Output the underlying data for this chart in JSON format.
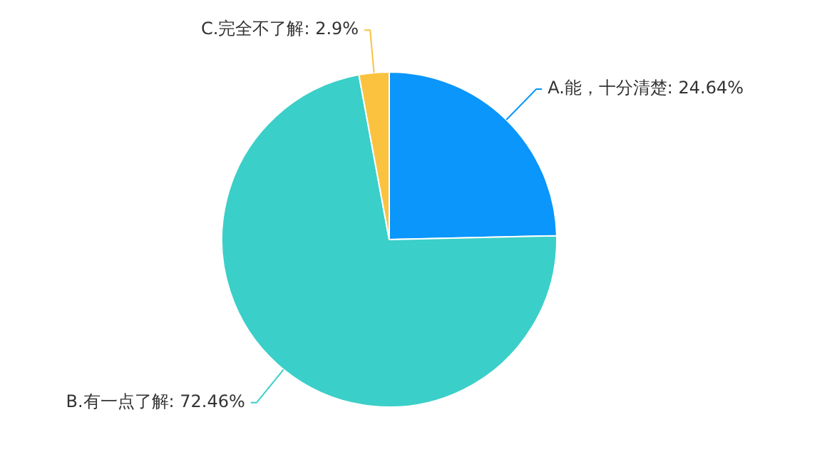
{
  "chart_data": {
    "type": "pie",
    "categories": [
      "A.能，十分清楚",
      "B.有一点了解",
      "C.完全不了解"
    ],
    "values": [
      24.64,
      72.46,
      2.9
    ],
    "value_labels": [
      "24.64%",
      "72.46%",
      "2.9%"
    ],
    "colors": [
      "#0a96fb",
      "#3acfc8",
      "#fbc23f"
    ],
    "legend": false
  }
}
